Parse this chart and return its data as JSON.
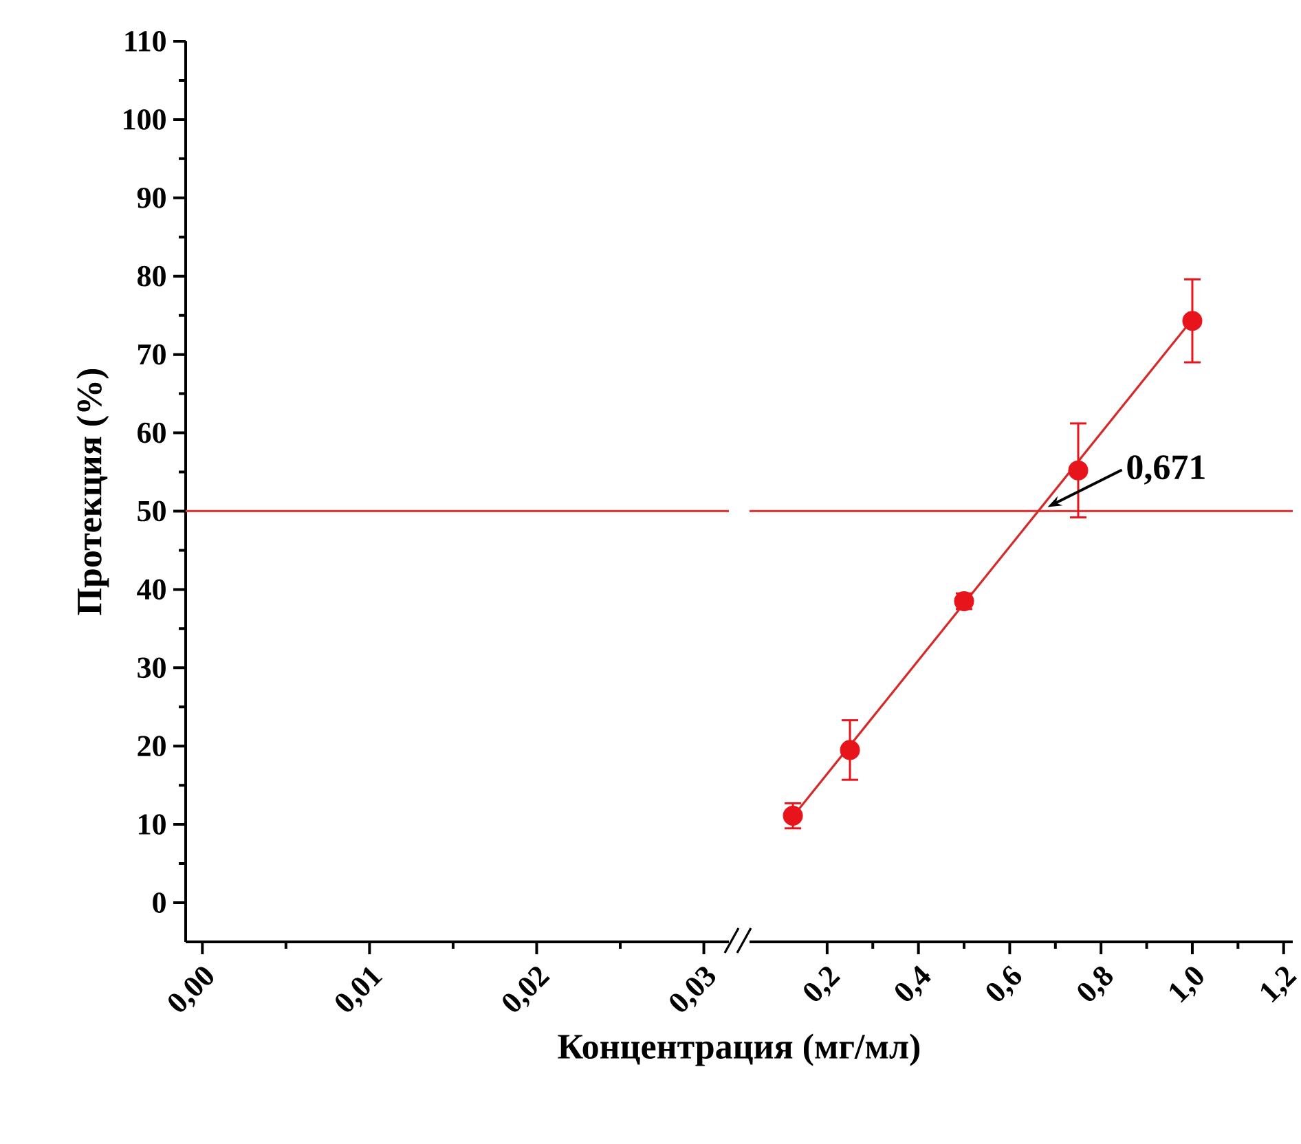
{
  "chart_data": [
    {
      "type": "scatter",
      "ylabel": "Протекция (%)",
      "xlim": [
        -0.001,
        0.0315
      ],
      "ylim": [
        -5,
        110
      ],
      "xticks": [
        {
          "value": 0,
          "label": "0,00"
        },
        {
          "value": 0.01,
          "label": "0,01"
        },
        {
          "value": 0.02,
          "label": "0,02"
        },
        {
          "value": 0.03,
          "label": "0,03"
        }
      ],
      "yticks": [
        0,
        10,
        20,
        30,
        40,
        50,
        60,
        70,
        80,
        90,
        100,
        110
      ],
      "ref_lines": [
        {
          "axis": "y",
          "value": 50,
          "color": "#e03a3a"
        }
      ],
      "grid": false
    },
    {
      "type": "scatter",
      "xlabel": "Концентрация (мг/мл)",
      "xlim": [
        0.03,
        1.22
      ],
      "ylim": [
        -5,
        110
      ],
      "xticks": [
        {
          "value": 0.2,
          "label": "0,2"
        },
        {
          "value": 0.4,
          "label": "0,4"
        },
        {
          "value": 0.6,
          "label": "0,6"
        },
        {
          "value": 0.8,
          "label": "0,8"
        },
        {
          "value": 1.0,
          "label": "1,0"
        },
        {
          "value": 1.2,
          "label": "1,2"
        }
      ],
      "tick_labels": "x",
      "series": [
        {
          "marker": "circle",
          "color": "#e8141c",
          "x": [
            0.125,
            0.25,
            0.5,
            0.75,
            1.0
          ],
          "values": [
            11.1,
            19.5,
            38.5,
            55.2,
            74.3
          ],
          "errors": [
            1.6,
            3.8,
            1.0,
            6.0,
            5.3
          ]
        },
        {
          "type": "line",
          "color": "#d42a2a",
          "x": [
            0.125,
            1.0
          ],
          "values": [
            11.0,
            74.5
          ]
        }
      ],
      "ref_lines": [
        {
          "axis": "y",
          "value": 50,
          "color": "#e03a3a"
        }
      ],
      "annotations": [
        {
          "text": "0,671",
          "x": 0.671,
          "y": 50
        }
      ],
      "grid": false
    }
  ]
}
